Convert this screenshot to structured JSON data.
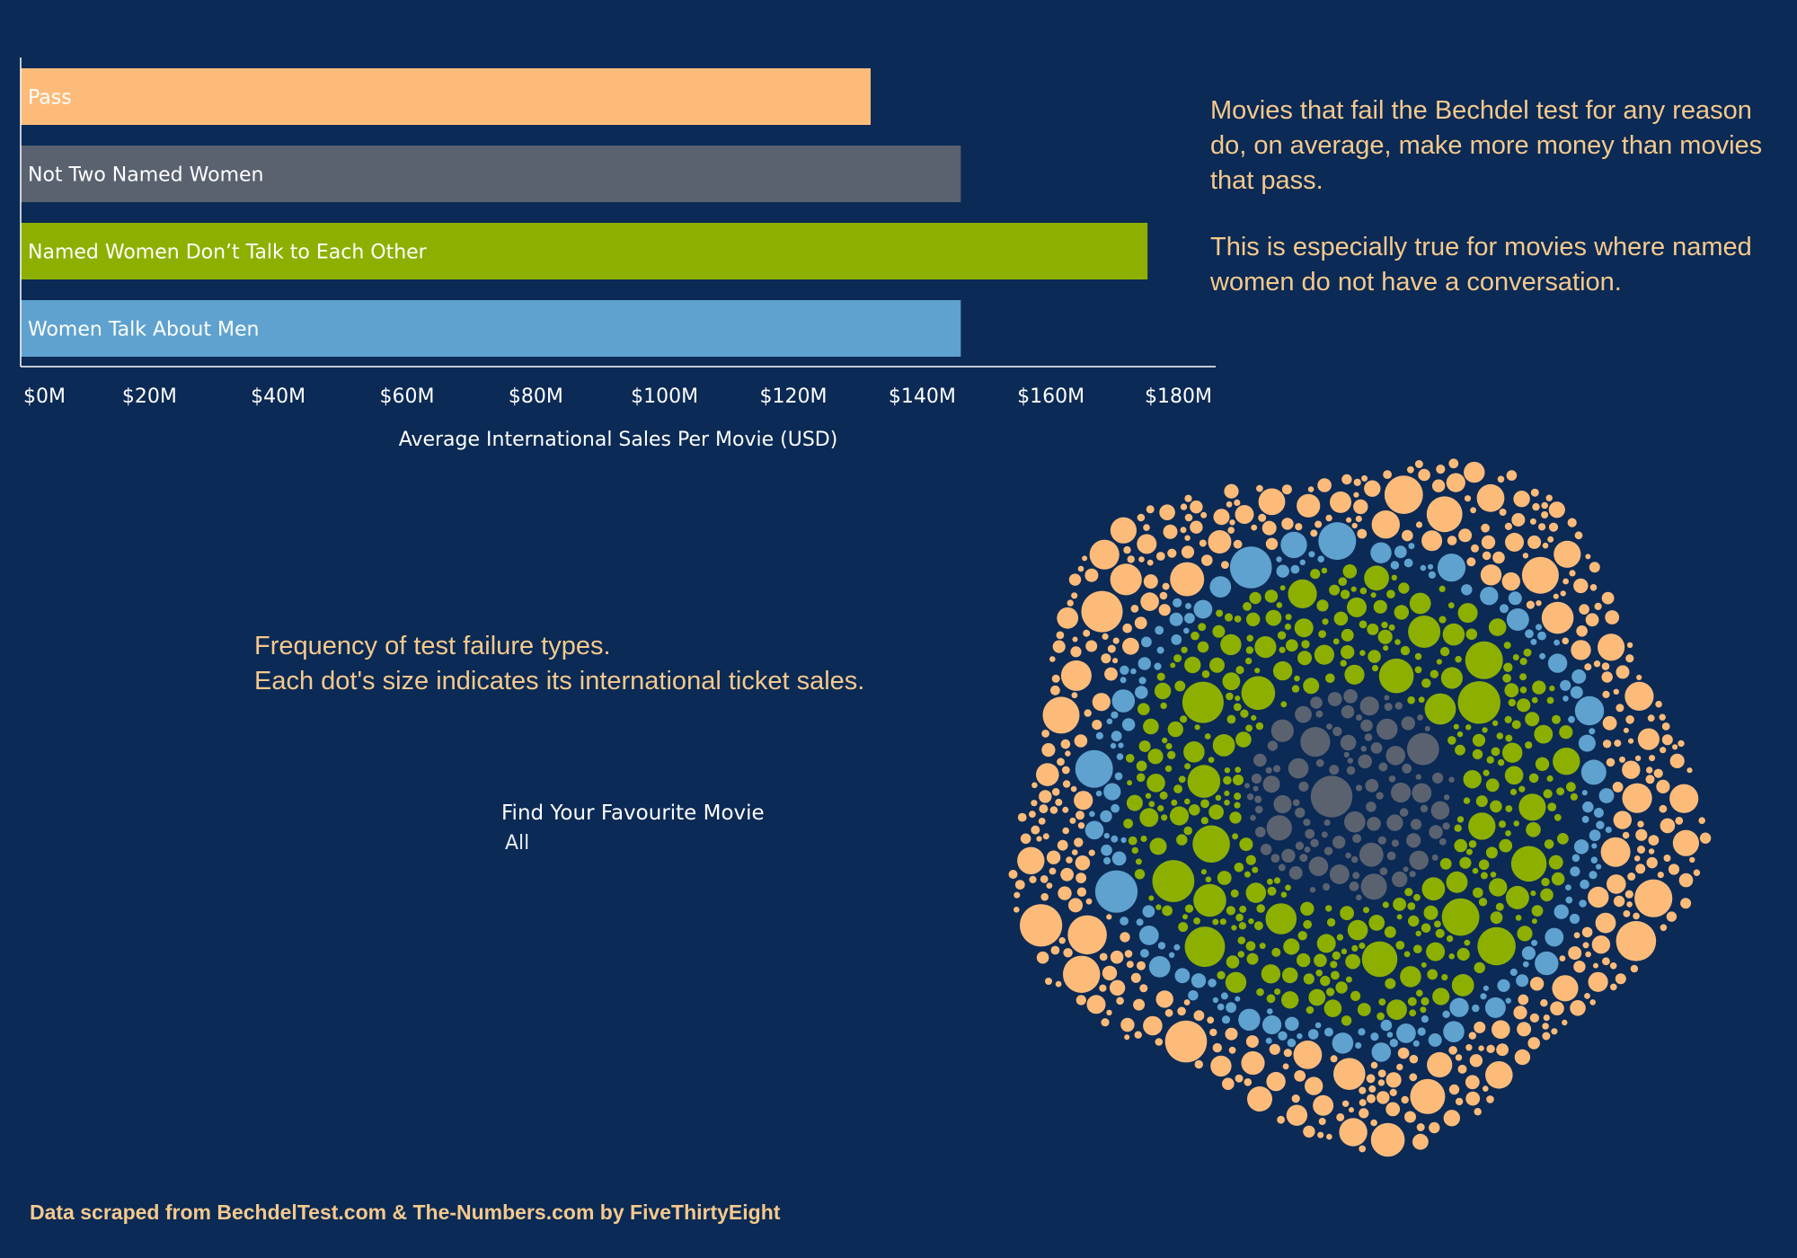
{
  "colors": {
    "background": "#0b2a55",
    "pass": "#fdbb7a",
    "not_two_named_women": "#5a6270",
    "dont_talk": "#8db000",
    "talk_about_men": "#5fa2cf",
    "note_text": "#f5c98d"
  },
  "chart_data": [
    {
      "type": "bar",
      "orientation": "horizontal",
      "categories": [
        "Pass",
        "Not Two Named Women",
        "Named Women Don’t Talk to Each Other",
        "Women Talk About Men"
      ],
      "values": [
        132,
        146,
        175,
        146
      ],
      "xlabel": "Average International Sales Per Movie (USD)",
      "xlim": [
        0,
        180
      ],
      "x_ticks": [
        "$0M",
        "$20M",
        "$40M",
        "$60M",
        "$80M",
        "$100M",
        "$120M",
        "$140M",
        "$160M",
        "$180M"
      ],
      "bar_labels_inside": true,
      "grid": false
    },
    {
      "type": "scatter",
      "subtype": "packed-bubble",
      "caption": "Frequency of test failure types.\nEach dot's size indicates its international ticket sales.",
      "rings_inner_to_outer": [
        "Not Two Named Women",
        "Named Women Don’t Talk to Each Other",
        "Women Talk About Men",
        "Pass"
      ]
    }
  ],
  "notes": {
    "headline_1": "Movies that fail the Bechdel test for any reason do, on average, make more money than movies that pass.",
    "headline_2": "This is especially true for movies where named women do not have a conversation.",
    "bubble_caption_line1": "Frequency of test failure types.",
    "bubble_caption_line2": "Each dot's size indicates its international ticket sales."
  },
  "filter": {
    "label": "Find Your Favourite Movie",
    "value": "All"
  },
  "source": "Data scraped from BechdelTest.com & The-Numbers.com by FiveThirtyEight"
}
